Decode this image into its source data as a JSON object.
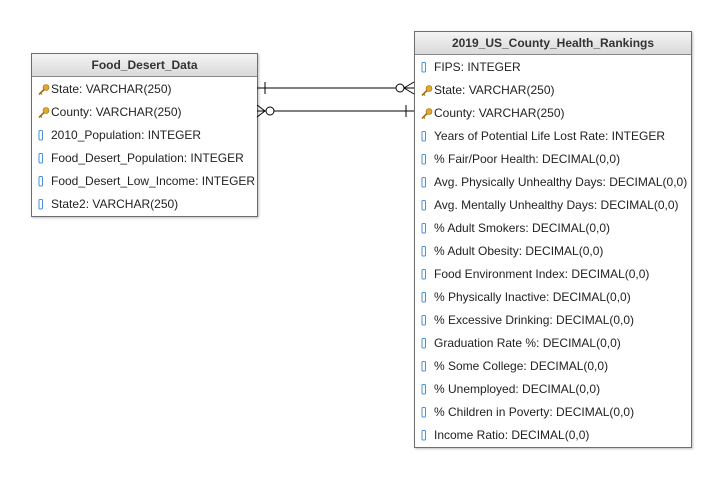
{
  "entities": {
    "food_desert": {
      "title": "Food_Desert_Data",
      "fields": [
        {
          "label": "State: VARCHAR(250)",
          "icon": "key-icon"
        },
        {
          "label": "County: VARCHAR(250)",
          "icon": "key-icon"
        },
        {
          "label": "2010_Population: INTEGER",
          "icon": "column-icon"
        },
        {
          "label": "Food_Desert_Population: INTEGER",
          "icon": "column-icon"
        },
        {
          "label": "Food_Desert_Low_Income: INTEGER",
          "icon": "column-icon"
        },
        {
          "label": "State2: VARCHAR(250)",
          "icon": "column-icon"
        }
      ]
    },
    "health_rankings": {
      "title": "2019_US_County_Health_Rankings",
      "fields": [
        {
          "label": "FIPS: INTEGER",
          "icon": "column-icon"
        },
        {
          "label": "State: VARCHAR(250)",
          "icon": "key-icon"
        },
        {
          "label": "County: VARCHAR(250)",
          "icon": "key-icon"
        },
        {
          "label": "Years of Potential Life Lost Rate: INTEGER",
          "icon": "column-icon"
        },
        {
          "label": "% Fair/Poor Health: DECIMAL(0,0)",
          "icon": "column-icon"
        },
        {
          "label": "Avg. Physically Unhealthy Days: DECIMAL(0,0)",
          "icon": "column-icon"
        },
        {
          "label": "Avg. Mentally Unhealthy Days: DECIMAL(0,0)",
          "icon": "column-icon"
        },
        {
          "label": "% Adult Smokers: DECIMAL(0,0)",
          "icon": "column-icon"
        },
        {
          "label": "% Adult Obesity: DECIMAL(0,0)",
          "icon": "column-icon"
        },
        {
          "label": "Food Environment Index: DECIMAL(0,0)",
          "icon": "column-icon"
        },
        {
          "label": "% Physically Inactive: DECIMAL(0,0)",
          "icon": "column-icon"
        },
        {
          "label": "% Excessive Drinking: DECIMAL(0,0)",
          "icon": "column-icon"
        },
        {
          "label": "Graduation Rate %: DECIMAL(0,0)",
          "icon": "column-icon"
        },
        {
          "label": "% Some College: DECIMAL(0,0)",
          "icon": "column-icon"
        },
        {
          "label": "% Unemployed: DECIMAL(0,0)",
          "icon": "column-icon"
        },
        {
          "label": "% Children in Poverty: DECIMAL(0,0)",
          "icon": "column-icon"
        },
        {
          "label": "Income Ratio: DECIMAL(0,0)",
          "icon": "column-icon"
        }
      ]
    }
  },
  "relationships": [
    {
      "from_field": "Food_Desert_Data.State",
      "to_field": "2019_US_County_Health_Rankings.State",
      "from_cardinality": "one",
      "to_cardinality": "zero-or-many"
    },
    {
      "from_field": "Food_Desert_Data.County",
      "to_field": "2019_US_County_Health_Rankings.County",
      "from_cardinality": "zero-or-many",
      "to_cardinality": "one"
    }
  ],
  "colors": {
    "key_icon": "#e0a82e",
    "column_icon": "#4a90d9",
    "line": "#000000"
  }
}
